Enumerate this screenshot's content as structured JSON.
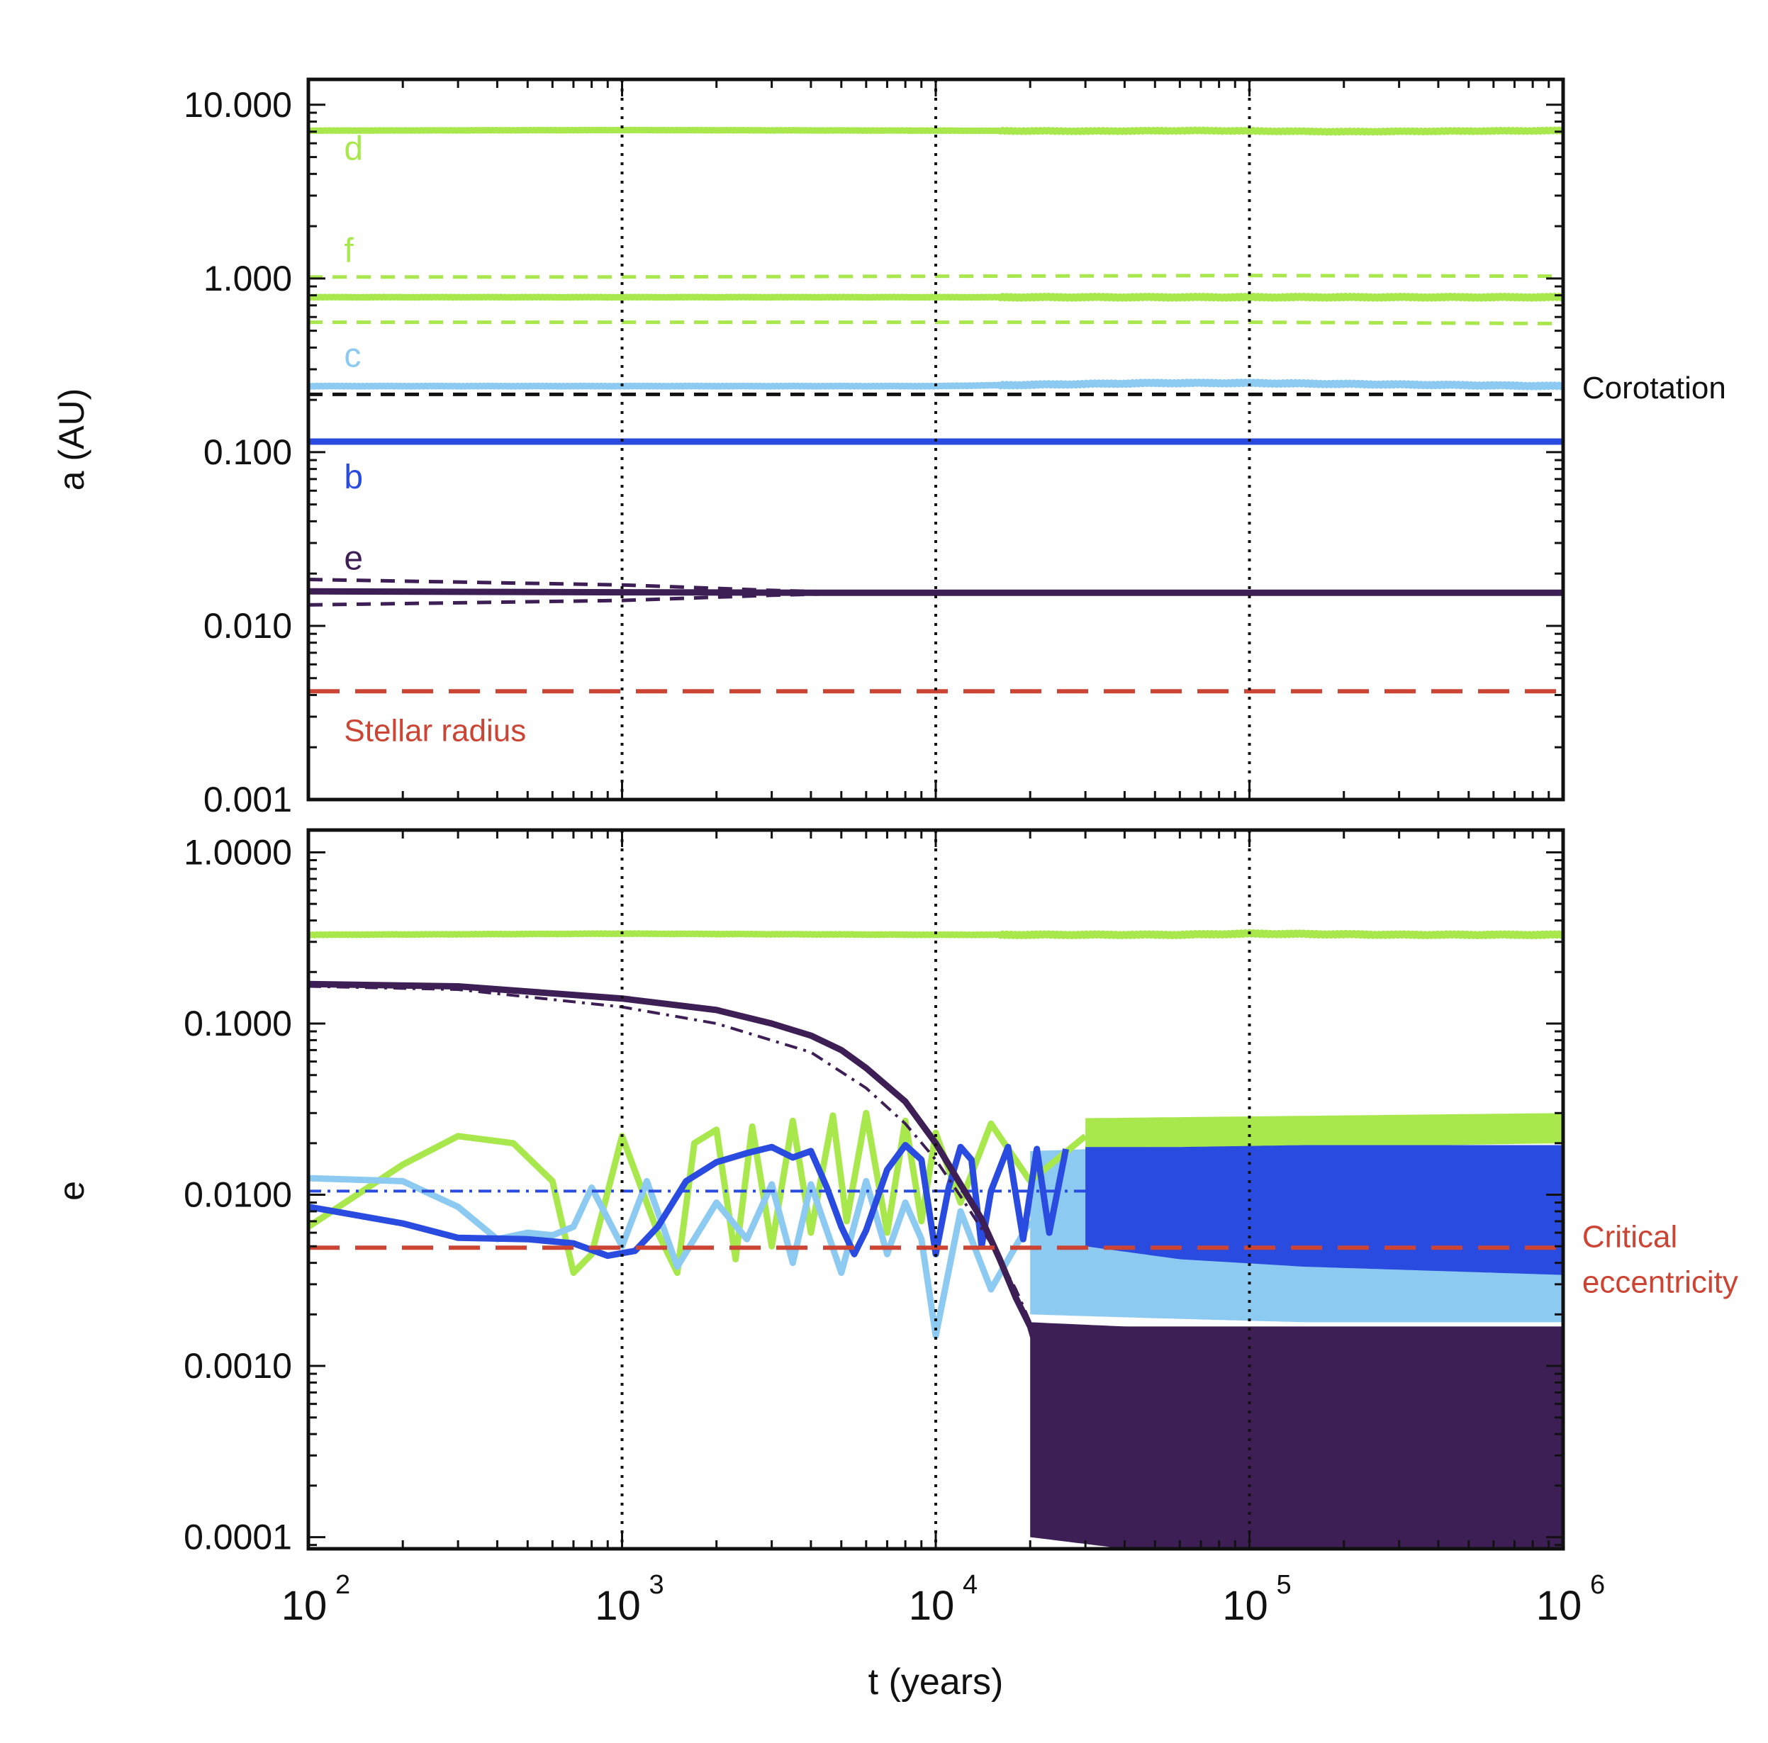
{
  "chart_data": [
    {
      "type": "line",
      "ylabel": "a (AU)",
      "yscale": "log",
      "ylim": [
        0.001,
        14
      ],
      "xscale": "log",
      "xlim": [
        100,
        1000000
      ],
      "yticks": [
        "10.000",
        "1.000",
        "0.100",
        "0.010",
        "0.001"
      ],
      "ytick_values": [
        10,
        1,
        0.1,
        0.01,
        0.001
      ],
      "vlines": [
        1000,
        10000,
        100000
      ],
      "planet_labels": [
        {
          "text": "d",
          "x": 130,
          "y": 5.6,
          "color": "#a9e84c"
        },
        {
          "text": "f",
          "x": 130,
          "y": 1.45,
          "color": "#a9e84c"
        },
        {
          "text": "c",
          "x": 130,
          "y": 0.36,
          "color": "#8ccaf2"
        },
        {
          "text": "b",
          "x": 130,
          "y": 0.072,
          "color": "#2a4be0"
        },
        {
          "text": "e",
          "x": 130,
          "y": 0.0245,
          "color": "#3e1f55"
        }
      ],
      "annotations": [
        {
          "text": "Corotation",
          "x": 1150000,
          "y": 0.235,
          "color": "#111111"
        },
        {
          "text": "Stellar radius",
          "x": 130,
          "y": 0.0025,
          "color": "#cc4433"
        }
      ],
      "series": [
        {
          "color": "#a9e84c",
          "style": "solid",
          "noise": 0.02,
          "x": [
            100,
            1000,
            10000,
            30000,
            70000,
            200000,
            1000000
          ],
          "y": [
            7.1,
            7.15,
            7.1,
            7.05,
            7.1,
            7.0,
            7.1
          ]
        },
        {
          "color": "#a9e84c",
          "style": "dashed",
          "x": [
            100,
            1000,
            10000,
            100000,
            1000000
          ],
          "y": [
            1.02,
            1.02,
            1.03,
            1.04,
            1.03
          ]
        },
        {
          "color": "#a9e84c",
          "style": "solid",
          "noise": 0.03,
          "x": [
            100,
            1000,
            10000,
            100000,
            1000000
          ],
          "y": [
            0.78,
            0.78,
            0.78,
            0.78,
            0.78
          ]
        },
        {
          "color": "#a9e84c",
          "style": "dashed",
          "x": [
            100,
            1000,
            10000,
            100000,
            1000000
          ],
          "y": [
            0.56,
            0.56,
            0.56,
            0.56,
            0.55
          ]
        },
        {
          "color": "#8ccaf2",
          "style": "solid",
          "noise": 0.03,
          "x": [
            100,
            1000,
            10000,
            50000,
            100000,
            300000,
            1000000
          ],
          "y": [
            0.24,
            0.24,
            0.24,
            0.25,
            0.25,
            0.245,
            0.24
          ]
        },
        {
          "color": "#111111",
          "style": "dashed",
          "x": [
            100,
            1000000
          ],
          "y": [
            0.215,
            0.215
          ]
        },
        {
          "color": "#2a4be0",
          "style": "solid",
          "x": [
            100,
            1000000
          ],
          "y": [
            0.115,
            0.115
          ]
        },
        {
          "color": "#3e1f55",
          "style": "dashed",
          "x": [
            100,
            1000,
            3000,
            6000,
            1000000
          ],
          "y": [
            0.0185,
            0.0172,
            0.016,
            0.0155,
            0.0155
          ]
        },
        {
          "color": "#3e1f55",
          "style": "dashed",
          "x": [
            100,
            1000,
            3000,
            6000,
            1000000
          ],
          "y": [
            0.0132,
            0.014,
            0.015,
            0.0155,
            0.0155
          ]
        },
        {
          "color": "#3e1f55",
          "style": "solid",
          "x": [
            100,
            1000,
            5000,
            1000000
          ],
          "y": [
            0.0158,
            0.0156,
            0.0155,
            0.0155
          ]
        },
        {
          "color": "#cc4433",
          "style": "longdash",
          "x": [
            100,
            1000000
          ],
          "y": [
            0.0042,
            0.0042
          ]
        }
      ]
    },
    {
      "type": "line",
      "xlabel": "t (years)",
      "ylabel": "e",
      "yscale": "log",
      "ylim": [
        8.55e-05,
        1.35
      ],
      "xscale": "log",
      "xlim": [
        100,
        1000000
      ],
      "yticks": [
        "1.0000",
        "0.1000",
        "0.0100",
        "0.0010",
        "0.0001"
      ],
      "ytick_values": [
        1,
        0.1,
        0.01,
        0.001,
        0.0001
      ],
      "xticks": [
        {
          "base": "10",
          "exp": "2",
          "value": 100
        },
        {
          "base": "10",
          "exp": "3",
          "value": 1000
        },
        {
          "base": "10",
          "exp": "4",
          "value": 10000
        },
        {
          "base": "10",
          "exp": "5",
          "value": 100000
        },
        {
          "base": "10",
          "exp": "6",
          "value": 1000000
        }
      ],
      "vlines": [
        1000,
        10000,
        100000
      ],
      "annotations": [
        {
          "text": "Critical",
          "x": 1150000,
          "y": 0.0057,
          "color": "#cc4433"
        },
        {
          "text": "eccentricity",
          "x": 1150000,
          "y": 0.0031,
          "color": "#cc4433"
        }
      ],
      "bands": [
        {
          "color": "#a9e84c",
          "x": [
            30000,
            1000000
          ],
          "lo": [
            0.018,
            0.02
          ],
          "hi": [
            0.028,
            0.03
          ]
        },
        {
          "color": "#8ccaf2",
          "x": [
            20000,
            50000,
            150000,
            1000000
          ],
          "lo": [
            0.002,
            0.0019,
            0.0018,
            0.0018
          ],
          "hi": [
            0.018,
            0.019,
            0.019,
            0.019
          ]
        },
        {
          "color": "#2a4be0",
          "x": [
            30000,
            60000,
            150000,
            1000000
          ],
          "lo": [
            0.005,
            0.0042,
            0.0038,
            0.0034
          ],
          "hi": [
            0.019,
            0.019,
            0.0195,
            0.0195
          ]
        },
        {
          "color": "#3e1f55",
          "x": [
            20000,
            40000,
            100000,
            1000000
          ],
          "lo": [
            0.0001,
            8.55e-05,
            8.55e-05,
            8.55e-05
          ],
          "hi": [
            0.0018,
            0.0017,
            0.0017,
            0.0017
          ]
        }
      ],
      "series": [
        {
          "color": "#a9e84c",
          "style": "solid",
          "noise": 0.03,
          "x": [
            100,
            1000,
            10000,
            60000,
            100000,
            300000,
            1000000
          ],
          "y": [
            0.33,
            0.335,
            0.33,
            0.33,
            0.335,
            0.33,
            0.33
          ]
        },
        {
          "color": "#a9e84c",
          "style": "solid",
          "x": [
            100,
            200,
            300,
            450,
            600,
            700,
            800,
            1000,
            1300,
            1500,
            1700,
            2000,
            2300,
            2600,
            3000,
            3500,
            4000,
            4700,
            5200,
            6000,
            7000,
            8000,
            9000,
            10000,
            12000,
            15000,
            20000,
            30000
          ],
          "y": [
            0.0065,
            0.015,
            0.022,
            0.02,
            0.012,
            0.0035,
            0.0045,
            0.022,
            0.006,
            0.0035,
            0.02,
            0.024,
            0.0042,
            0.025,
            0.005,
            0.027,
            0.006,
            0.029,
            0.007,
            0.03,
            0.006,
            0.027,
            0.007,
            0.023,
            0.009,
            0.026,
            0.012,
            0.022
          ]
        },
        {
          "color": "#8ccaf2",
          "style": "solid",
          "x": [
            100,
            200,
            300,
            400,
            500,
            600,
            700,
            800,
            1000,
            1200,
            1500,
            2000,
            2500,
            3000,
            3500,
            4000,
            5000,
            6000,
            7000,
            8000,
            9000,
            10000,
            12000,
            15000,
            20000
          ],
          "y": [
            0.0125,
            0.012,
            0.0085,
            0.0055,
            0.006,
            0.0058,
            0.0065,
            0.011,
            0.005,
            0.012,
            0.0038,
            0.009,
            0.0055,
            0.0115,
            0.004,
            0.0115,
            0.0035,
            0.012,
            0.0045,
            0.009,
            0.0055,
            0.0015,
            0.008,
            0.0028,
            0.007
          ]
        },
        {
          "color": "#2a4be0",
          "style": "dashdot",
          "x": [
            100,
            1000000
          ],
          "y": [
            0.0105,
            0.0105
          ]
        },
        {
          "color": "#2a4be0",
          "style": "solid",
          "x": [
            100,
            200,
            300,
            500,
            700,
            900,
            1100,
            1300,
            1600,
            2000,
            2500,
            3000,
            3500,
            4000,
            4500,
            5000,
            5500,
            6000,
            7000,
            8000,
            9000,
            10000,
            11000,
            12000,
            13000,
            14000,
            15000,
            17000,
            19000,
            21000,
            23000,
            26000
          ],
          "y": [
            0.0085,
            0.0068,
            0.0056,
            0.0055,
            0.0052,
            0.0044,
            0.0047,
            0.0065,
            0.012,
            0.0155,
            0.0175,
            0.019,
            0.0165,
            0.018,
            0.011,
            0.0065,
            0.0045,
            0.0062,
            0.014,
            0.0195,
            0.016,
            0.0045,
            0.011,
            0.019,
            0.016,
            0.005,
            0.0105,
            0.019,
            0.0055,
            0.0185,
            0.006,
            0.0185
          ]
        },
        {
          "color": "#3e1f55",
          "style": "dashdot",
          "x": [
            100,
            300,
            1000,
            2000,
            4000,
            6000,
            8000,
            10000,
            12000,
            15000,
            18000,
            20000,
            22000,
            25000,
            30000
          ],
          "y": [
            0.165,
            0.158,
            0.125,
            0.1,
            0.068,
            0.042,
            0.026,
            0.016,
            0.0098,
            0.0052,
            0.0028,
            0.0018,
            0.0011,
            0.0005,
            0.0001
          ]
        },
        {
          "color": "#3e1f55",
          "style": "solid",
          "x": [
            100,
            300,
            1000,
            2000,
            3000,
            4000,
            5000,
            6000,
            8000,
            10000,
            12000,
            14000,
            16000,
            18000,
            20000,
            21000
          ],
          "y": [
            0.17,
            0.165,
            0.14,
            0.12,
            0.1,
            0.085,
            0.07,
            0.055,
            0.035,
            0.02,
            0.0115,
            0.0072,
            0.0042,
            0.0025,
            0.0017,
            0.00125
          ]
        },
        {
          "color": "#cc4433",
          "style": "longdash",
          "x": [
            100,
            1000000
          ],
          "y": [
            0.0049,
            0.0049
          ]
        }
      ]
    }
  ]
}
